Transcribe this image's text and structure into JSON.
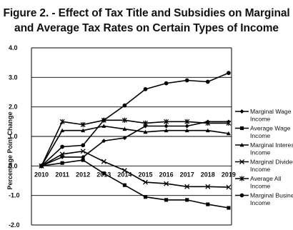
{
  "chart_data": {
    "type": "line",
    "title_line1": "Figure 2. - Effect of Tax Title and Subsidies on Marginal",
    "title_line2": "and Average Tax Rates on Certain Types of Income",
    "ylabel": "Percentage Point Change",
    "xlabel": "",
    "ylim": [
      -2.0,
      4.0
    ],
    "yticks": [
      "4.0",
      "3.0",
      "2.0",
      "1.0",
      "0.0",
      "-1.0",
      "-2.0"
    ],
    "ytick_values": [
      4,
      3,
      2,
      1,
      0,
      -1,
      -2
    ],
    "x": [
      "2010",
      "2011",
      "2012",
      "2013",
      "2014",
      "2015",
      "2016",
      "2017",
      "2018",
      "2019"
    ],
    "grid": true,
    "legend_position": "right",
    "series": [
      {
        "name_lines": [
          "Marginal Wage",
          "Income"
        ],
        "marker": "diamond",
        "values": [
          0.0,
          0.3,
          0.3,
          0.85,
          0.95,
          1.35,
          1.35,
          1.35,
          1.5,
          1.5
        ]
      },
      {
        "name_lines": [
          "Average Wage",
          "Income"
        ],
        "marker": "square",
        "values": [
          0.0,
          0.1,
          0.2,
          -0.25,
          -0.65,
          -1.05,
          -1.15,
          -1.15,
          -1.3,
          -1.42
        ]
      },
      {
        "name_lines": [
          "Marginal Interest",
          "Income"
        ],
        "marker": "triangle",
        "values": [
          0.0,
          1.2,
          1.2,
          1.35,
          1.25,
          1.15,
          1.2,
          1.2,
          1.2,
          1.1
        ]
      },
      {
        "name_lines": [
          "Marginal Dividend",
          "Income"
        ],
        "marker": "x",
        "values": [
          0.0,
          0.4,
          0.5,
          0.15,
          -0.15,
          -0.55,
          -0.6,
          -0.7,
          -0.7,
          -0.72
        ]
      },
      {
        "name_lines": [
          "Average All",
          "Income"
        ],
        "marker": "asterisk",
        "values": [
          0.0,
          1.5,
          1.4,
          1.55,
          1.55,
          1.45,
          1.5,
          1.5,
          1.45,
          1.45
        ]
      },
      {
        "name_lines": [
          "Marginal Business",
          "Income"
        ],
        "marker": "circle",
        "values": [
          0.0,
          0.65,
          0.7,
          1.55,
          2.05,
          2.6,
          2.8,
          2.9,
          2.85,
          3.15
        ]
      }
    ]
  }
}
